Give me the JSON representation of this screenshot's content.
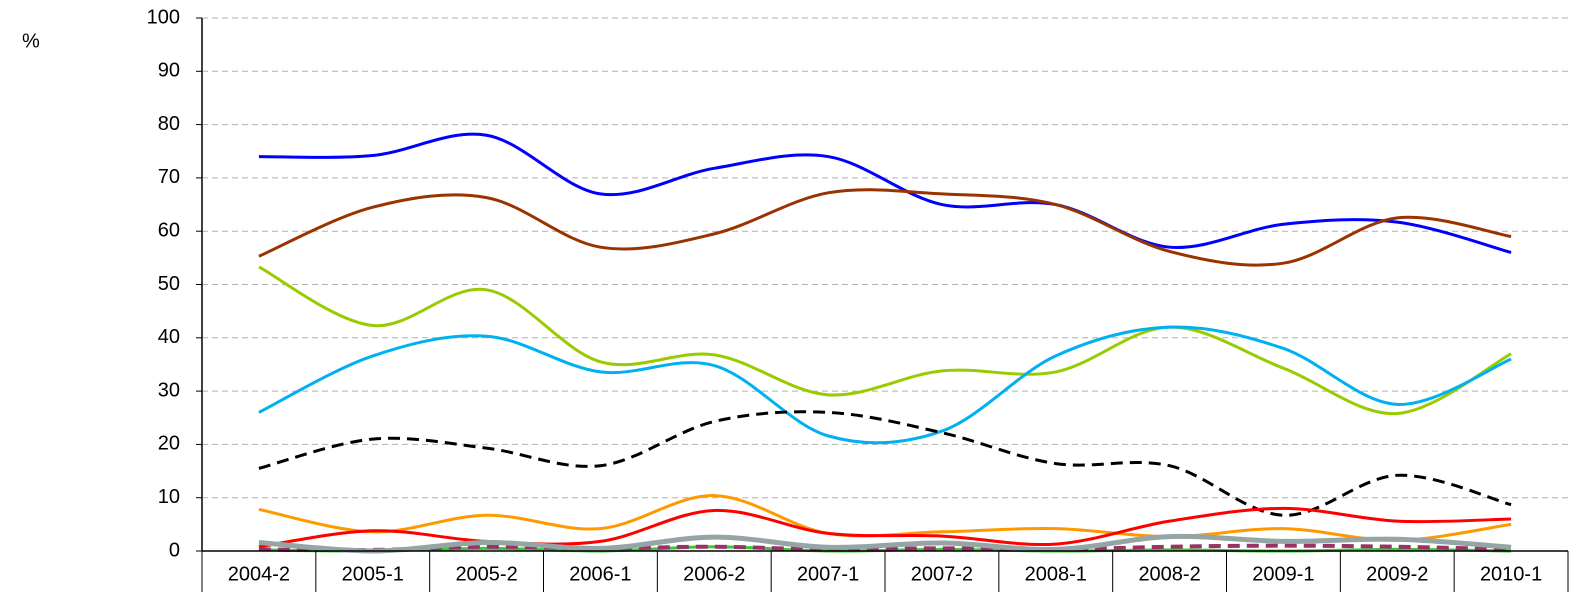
{
  "chart_data": {
    "type": "line",
    "ylabel": "%",
    "categories": [
      "2004-2",
      "2005-1",
      "2005-2",
      "2006-1",
      "2006-2",
      "2007-1",
      "2007-2",
      "2008-1",
      "2008-2",
      "2009-1",
      "2009-2",
      "2010-1"
    ],
    "ylim": [
      0,
      100
    ],
    "yticks": [
      0,
      10,
      20,
      30,
      40,
      50,
      60,
      70,
      80,
      90,
      100
    ],
    "grid": true,
    "smooth": true,
    "series": [
      {
        "color": "#0000ff",
        "width": 3,
        "dash": false,
        "values": [
          74,
          74.2,
          78,
          67,
          71.8,
          74,
          65,
          65,
          57,
          61.3,
          61.7,
          56
        ]
      },
      {
        "color": "#993300",
        "width": 3,
        "dash": false,
        "values": [
          55.3,
          64.5,
          66.3,
          57,
          59.5,
          67.2,
          67,
          65,
          56.2,
          54,
          62.5,
          59
        ]
      },
      {
        "color": "#99cc00",
        "width": 3,
        "dash": false,
        "values": [
          53.3,
          42.3,
          49,
          35.5,
          36.8,
          29.3,
          33.8,
          33.6,
          42,
          34.3,
          25.8,
          37
        ]
      },
      {
        "color": "#00b0f0",
        "width": 3,
        "dash": false,
        "values": [
          26,
          36.6,
          40.3,
          33.6,
          34.8,
          21.6,
          22.5,
          36.6,
          42,
          38,
          27.5,
          36
        ]
      },
      {
        "color": "#000000",
        "width": 3,
        "dash": true,
        "values": [
          15.5,
          21,
          19.3,
          16,
          24.3,
          26,
          22.2,
          16.4,
          16,
          6.7,
          14.2,
          8.7
        ]
      },
      {
        "color": "#ff9900",
        "width": 3,
        "dash": false,
        "values": [
          7.8,
          3.6,
          6.7,
          4.2,
          10.4,
          3.3,
          3.6,
          4.2,
          2.7,
          4.2,
          2,
          5
        ]
      },
      {
        "color": "#ff0000",
        "width": 3,
        "dash": false,
        "values": [
          0.8,
          3.8,
          1.8,
          1.8,
          7.6,
          3.3,
          2.8,
          1.3,
          5.6,
          8,
          5.6,
          6
        ]
      },
      {
        "color": "#33cc33",
        "width": 3,
        "dash": false,
        "values": [
          0.2,
          0,
          0.5,
          0,
          0.8,
          0,
          0.3,
          0,
          0.2,
          0,
          0.3,
          0
        ]
      },
      {
        "color": "#993366",
        "width": 4,
        "dash": true,
        "values": [
          0.3,
          0.2,
          0.8,
          0.5,
          0.8,
          0.3,
          0.5,
          0.3,
          0.8,
          1,
          0.8,
          0.3
        ]
      },
      {
        "color": "#95a5a6",
        "width": 5,
        "dash": false,
        "values": [
          1.6,
          0,
          1.6,
          0.5,
          2.6,
          0.7,
          1.5,
          0.3,
          2.7,
          1.8,
          2.2,
          0.7
        ]
      }
    ]
  }
}
